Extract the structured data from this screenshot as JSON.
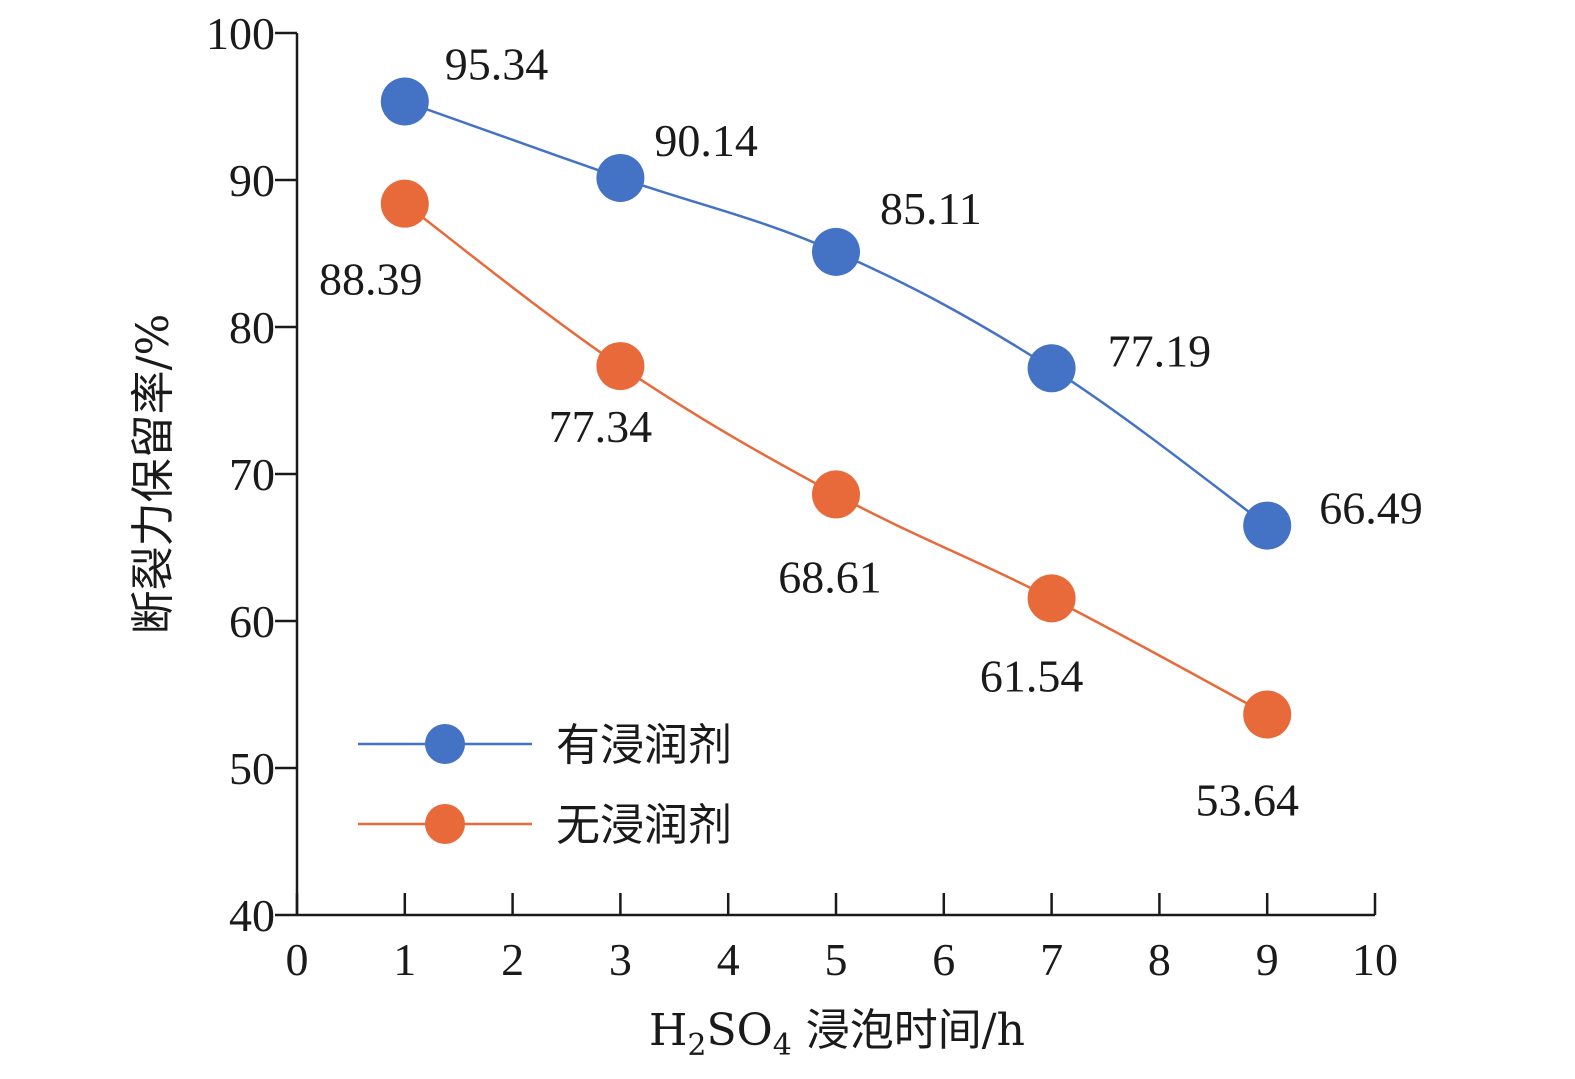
{
  "chart_data": {
    "type": "line",
    "xlabel": {
      "prefix": "H",
      "sub1": "2",
      "mid": "SO",
      "sub2": "4",
      "suffix": " 浸泡时间/h"
    },
    "ylabel": "断裂力保留率/%",
    "xlim": [
      0,
      10
    ],
    "ylim": [
      40,
      100
    ],
    "xticks": [
      0,
      1,
      2,
      3,
      4,
      5,
      6,
      7,
      8,
      9,
      10
    ],
    "yticks": [
      40,
      50,
      60,
      70,
      80,
      90,
      100
    ],
    "legend_position": "lower-left",
    "series": [
      {
        "name": "有浸润剂",
        "color": "#4472C4",
        "x": [
          1,
          3,
          5,
          7,
          9
        ],
        "y": [
          95.34,
          90.14,
          85.11,
          77.19,
          66.49
        ],
        "labels": [
          "95.34",
          "90.14",
          "85.11",
          "77.19",
          "66.49"
        ]
      },
      {
        "name": "无浸润剂",
        "color": "#E8693A",
        "x": [
          1,
          3,
          5,
          7,
          9
        ],
        "y": [
          88.39,
          77.34,
          68.61,
          61.54,
          53.64
        ],
        "labels": [
          "88.39",
          "77.34",
          "68.61",
          "61.54",
          "53.64"
        ]
      }
    ]
  }
}
